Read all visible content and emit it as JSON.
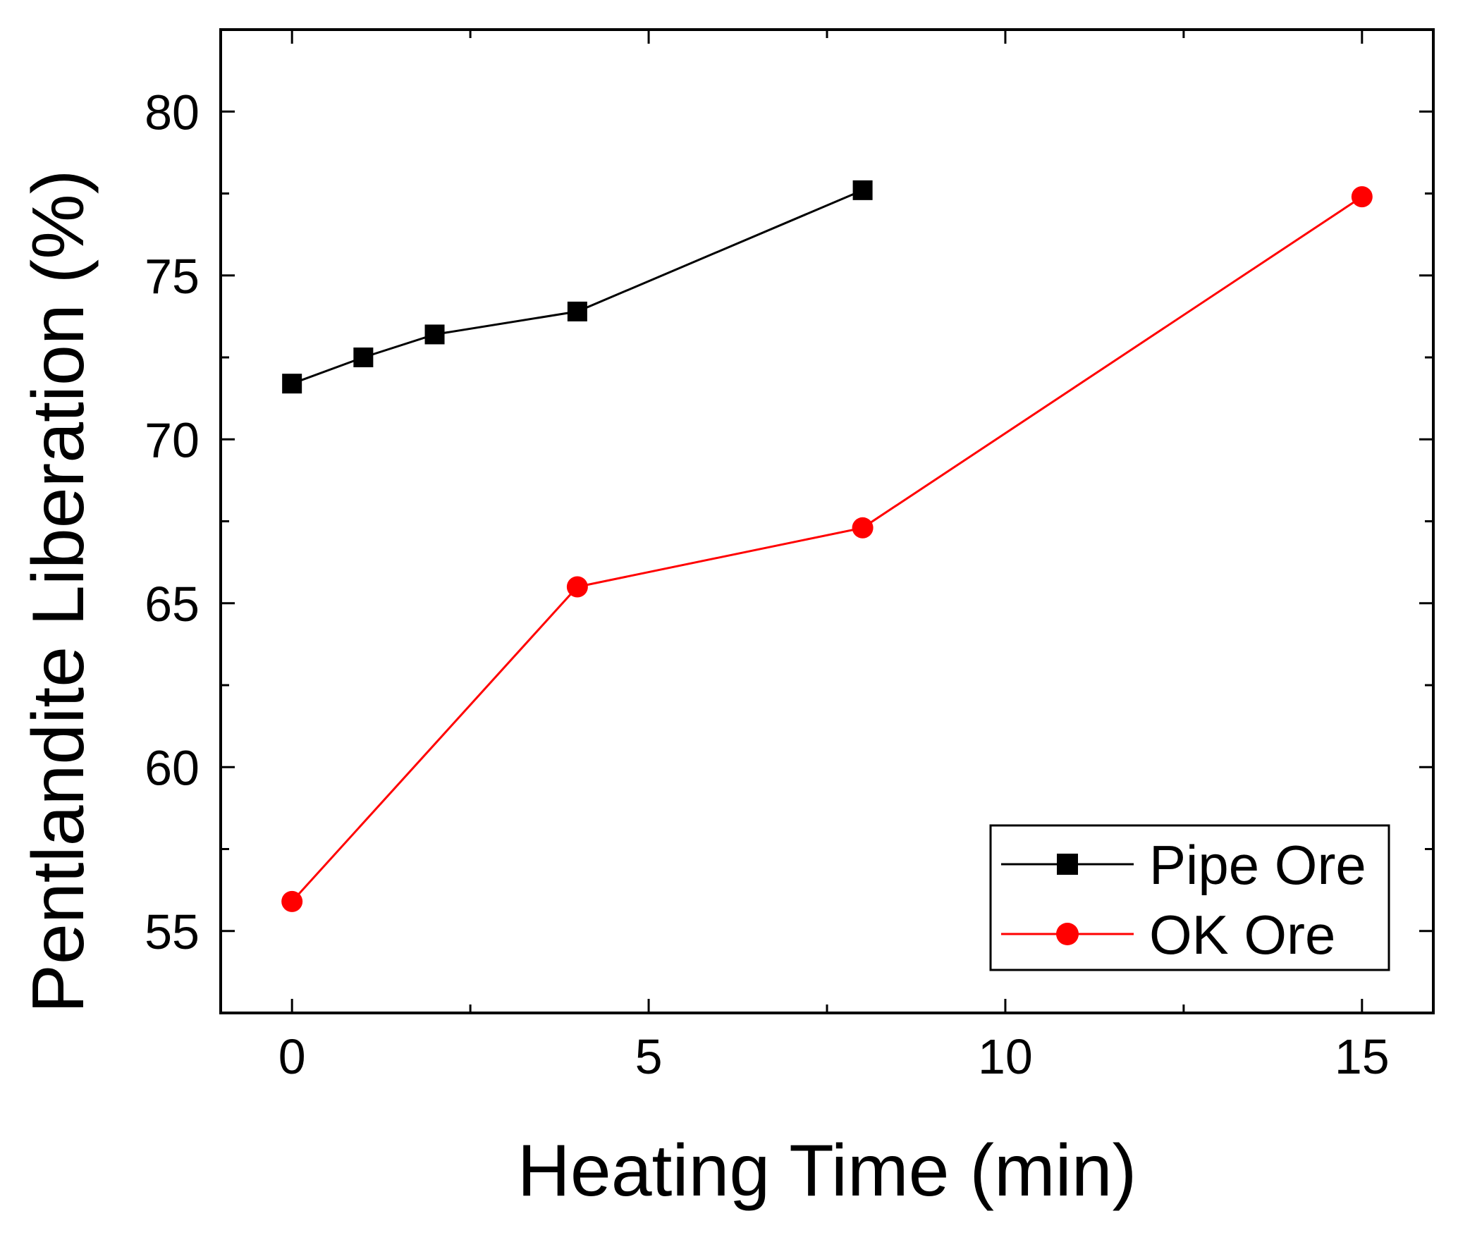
{
  "chart_data": {
    "type": "line",
    "title": "",
    "xlabel": "Heating Time (min)",
    "ylabel": "Pentlandite Liberation (%)",
    "xlim": [
      -1,
      16
    ],
    "ylim": [
      52.5,
      82.5
    ],
    "xticks": [
      0,
      5,
      10,
      15
    ],
    "xticks_minor": [
      2.5,
      7.5,
      12.5
    ],
    "yticks": [
      55,
      60,
      65,
      70,
      75,
      80
    ],
    "yticks_minor": [
      57.5,
      62.5,
      67.5,
      72.5,
      77.5
    ],
    "legend_position": "bottom-right",
    "series": [
      {
        "name": "Pipe Ore",
        "color": "#000000",
        "marker": "square",
        "x": [
          0,
          1,
          2,
          4,
          8
        ],
        "y": [
          71.7,
          72.5,
          73.2,
          73.9,
          77.6
        ]
      },
      {
        "name": "OK Ore",
        "color": "#ff0000",
        "marker": "circle",
        "x": [
          0,
          4,
          8,
          15
        ],
        "y": [
          55.9,
          65.5,
          67.3,
          77.4
        ]
      }
    ]
  }
}
